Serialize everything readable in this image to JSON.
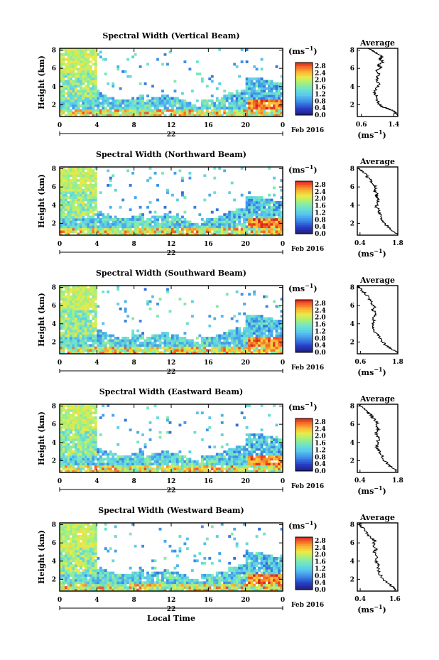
{
  "chart_data": [
    {
      "type": "heatmap",
      "title": "Spectral Width (Vertical Beam)",
      "ylabel": "Height (km)",
      "y_ticks": [
        "2",
        "4",
        "6",
        "8"
      ],
      "ylim": [
        0.7,
        8.2
      ],
      "x_ticks": [
        "0",
        "4",
        "8",
        "12",
        "16",
        "20",
        "0"
      ],
      "xlim": [
        0,
        24
      ],
      "date_day": "22",
      "date_label": "Feb 2016",
      "colorbar": {
        "unit": "(ms",
        "unit_sup": "−1",
        "unit_close": ")",
        "ticks": [
          "2.8",
          "2.4",
          "2.0",
          "1.6",
          "1.2",
          "0.8",
          "0.4",
          "0.0"
        ],
        "range": [
          0.0,
          3.0
        ]
      },
      "average": {
        "title": "Average",
        "y_ticks": [
          "2",
          "4",
          "6",
          "8"
        ],
        "ylim": [
          0.7,
          8.2
        ],
        "x_ticks": [
          "0.6",
          "1.4"
        ],
        "xlim": [
          0.5,
          1.5
        ],
        "xlabel": "(ms",
        "xlabel_sup": "−1",
        "xlabel_close": ")",
        "profile": [
          [
            1.5,
            0.8
          ],
          [
            1.42,
            1.2
          ],
          [
            1.3,
            1.5
          ],
          [
            1.15,
            1.7
          ],
          [
            1.05,
            2.0
          ],
          [
            1.0,
            2.5
          ],
          [
            0.98,
            3.0
          ],
          [
            0.92,
            3.3
          ],
          [
            0.95,
            3.8
          ],
          [
            1.05,
            4.2
          ],
          [
            0.98,
            4.6
          ],
          [
            1.0,
            5.0
          ],
          [
            1.05,
            5.4
          ],
          [
            0.98,
            5.8
          ],
          [
            1.1,
            6.1
          ],
          [
            1.0,
            6.4
          ],
          [
            1.15,
            6.7
          ],
          [
            1.05,
            7.0
          ],
          [
            1.12,
            7.3
          ],
          [
            1.0,
            7.6
          ],
          [
            0.9,
            7.9
          ],
          [
            0.8,
            8.2
          ]
        ]
      }
    },
    {
      "type": "heatmap",
      "title": "Spectral Width (Northward Beam)",
      "ylabel": "Height (km)",
      "y_ticks": [
        "2",
        "4",
        "6",
        "8"
      ],
      "ylim": [
        0.7,
        8.2
      ],
      "x_ticks": [
        "0",
        "4",
        "8",
        "12",
        "16",
        "20",
        "0"
      ],
      "xlim": [
        0,
        24
      ],
      "date_day": "22",
      "date_label": "Feb 2016",
      "colorbar": {
        "unit": "(ms",
        "unit_sup": "−1",
        "unit_close": ")",
        "ticks": [
          "2.8",
          "2.4",
          "2.0",
          "1.6",
          "1.2",
          "0.8",
          "0.4",
          "0.0"
        ],
        "range": [
          0.0,
          3.0
        ]
      },
      "average": {
        "title": "Average",
        "y_ticks": [
          "2",
          "4",
          "6",
          "8"
        ],
        "ylim": [
          0.7,
          8.2
        ],
        "x_ticks": [
          "0.4",
          "1.8"
        ],
        "xlim": [
          0.3,
          1.8
        ],
        "xlabel": "(ms",
        "xlabel_sup": "−1",
        "xlabel_close": ")",
        "profile": [
          [
            1.8,
            0.8
          ],
          [
            1.6,
            1.2
          ],
          [
            1.45,
            1.6
          ],
          [
            1.3,
            2.0
          ],
          [
            1.2,
            2.5
          ],
          [
            1.15,
            3.0
          ],
          [
            1.1,
            3.4
          ],
          [
            1.0,
            3.8
          ],
          [
            1.05,
            4.2
          ],
          [
            1.1,
            4.6
          ],
          [
            1.0,
            5.0
          ],
          [
            1.05,
            5.3
          ],
          [
            0.95,
            5.6
          ],
          [
            1.0,
            5.9
          ],
          [
            0.9,
            6.3
          ],
          [
            0.8,
            6.7
          ],
          [
            0.65,
            7.2
          ],
          [
            0.5,
            7.7
          ],
          [
            0.35,
            8.1
          ]
        ]
      }
    },
    {
      "type": "heatmap",
      "title": "Spectral Width (Southward Beam)",
      "ylabel": "Height (km)",
      "y_ticks": [
        "2",
        "4",
        "6",
        "8"
      ],
      "ylim": [
        0.7,
        8.2
      ],
      "x_ticks": [
        "0",
        "4",
        "8",
        "12",
        "16",
        "20",
        "0"
      ],
      "xlim": [
        0,
        24
      ],
      "date_day": "22",
      "date_label": "Feb 2016",
      "colorbar": {
        "unit": "(ms",
        "unit_sup": "−1",
        "unit_close": ")",
        "ticks": [
          "2.8",
          "2.4",
          "2.0",
          "1.6",
          "1.2",
          "0.8",
          "0.4",
          "0.0"
        ],
        "range": [
          0.0,
          3.0
        ]
      },
      "average": {
        "title": "Average",
        "y_ticks": [
          "2",
          "4",
          "6",
          "8"
        ],
        "ylim": [
          0.7,
          8.2
        ],
        "x_ticks": [
          "0.6",
          "1.8"
        ],
        "xlim": [
          0.5,
          1.8
        ],
        "xlabel": "(ms",
        "xlabel_sup": "−1",
        "xlabel_close": ")",
        "profile": [
          [
            1.8,
            0.8
          ],
          [
            1.6,
            1.2
          ],
          [
            1.45,
            1.6
          ],
          [
            1.3,
            2.0
          ],
          [
            1.2,
            2.5
          ],
          [
            1.1,
            3.0
          ],
          [
            1.0,
            3.4
          ],
          [
            0.98,
            3.8
          ],
          [
            1.05,
            4.3
          ],
          [
            1.0,
            4.7
          ],
          [
            1.1,
            5.1
          ],
          [
            1.0,
            5.5
          ],
          [
            1.05,
            5.9
          ],
          [
            0.95,
            6.3
          ],
          [
            0.9,
            6.7
          ],
          [
            0.8,
            7.1
          ],
          [
            0.7,
            7.5
          ],
          [
            0.6,
            7.9
          ],
          [
            0.5,
            8.2
          ]
        ]
      }
    },
    {
      "type": "heatmap",
      "title": "Spectral Width (Eastward Beam)",
      "ylabel": "Height (km)",
      "y_ticks": [
        "2",
        "4",
        "6",
        "8"
      ],
      "ylim": [
        0.7,
        8.2
      ],
      "x_ticks": [
        "0",
        "4",
        "8",
        "12",
        "16",
        "20",
        "0"
      ],
      "xlim": [
        0,
        24
      ],
      "date_day": "22",
      "date_label": "Feb 2016",
      "colorbar": {
        "unit": "(ms",
        "unit_sup": "−1",
        "unit_close": ")",
        "ticks": [
          "2.8",
          "2.4",
          "2.0",
          "1.6",
          "1.2",
          "0.8",
          "0.4",
          "0.0"
        ],
        "range": [
          0.0,
          3.0
        ]
      },
      "average": {
        "title": "Average",
        "y_ticks": [
          "2",
          "4",
          "6",
          "8"
        ],
        "ylim": [
          0.7,
          8.2
        ],
        "x_ticks": [
          "0.4",
          "1.8"
        ],
        "xlim": [
          0.3,
          1.8
        ],
        "xlabel": "(ms",
        "xlabel_sup": "−1",
        "xlabel_close": ")",
        "profile": [
          [
            1.8,
            0.8
          ],
          [
            1.6,
            1.2
          ],
          [
            1.45,
            1.6
          ],
          [
            1.3,
            2.0
          ],
          [
            1.2,
            2.6
          ],
          [
            1.1,
            3.1
          ],
          [
            1.0,
            3.5
          ],
          [
            1.05,
            4.0
          ],
          [
            1.1,
            4.5
          ],
          [
            1.0,
            5.0
          ],
          [
            1.1,
            5.4
          ],
          [
            1.0,
            5.8
          ],
          [
            1.05,
            6.2
          ],
          [
            0.9,
            6.6
          ],
          [
            0.8,
            7.0
          ],
          [
            0.65,
            7.4
          ],
          [
            0.5,
            7.8
          ],
          [
            0.4,
            8.2
          ]
        ]
      }
    },
    {
      "type": "heatmap",
      "title": "Spectral Width (Westward Beam)",
      "ylabel": "Height (km)",
      "y_ticks": [
        "2",
        "4",
        "6",
        "8"
      ],
      "ylim": [
        0.7,
        8.2
      ],
      "x_ticks": [
        "0",
        "4",
        "8",
        "12",
        "16",
        "20",
        "0"
      ],
      "xlim": [
        0,
        24
      ],
      "date_day": "22",
      "date_label": "Feb 2016",
      "xlabel": "Local Time",
      "colorbar": {
        "unit": "(ms",
        "unit_sup": "−1",
        "unit_close": ")",
        "ticks": [
          "2.8",
          "2.4",
          "2.0",
          "1.6",
          "1.2",
          "0.8",
          "0.4",
          "0.0"
        ],
        "range": [
          0.0,
          3.0
        ]
      },
      "average": {
        "title": "Average",
        "y_ticks": [
          "2",
          "4",
          "6",
          "8"
        ],
        "ylim": [
          0.7,
          8.2
        ],
        "x_ticks": [
          "0.4",
          "1.6"
        ],
        "xlim": [
          0.3,
          1.7
        ],
        "xlabel": "(ms",
        "xlabel_sup": "−1",
        "xlabel_close": ")",
        "profile": [
          [
            1.7,
            0.8
          ],
          [
            1.5,
            1.2
          ],
          [
            1.35,
            1.6
          ],
          [
            1.2,
            2.0
          ],
          [
            1.1,
            2.5
          ],
          [
            1.0,
            3.0
          ],
          [
            1.05,
            3.5
          ],
          [
            0.95,
            4.0
          ],
          [
            1.0,
            4.5
          ],
          [
            0.9,
            5.0
          ],
          [
            0.95,
            5.4
          ],
          [
            0.85,
            5.8
          ],
          [
            0.9,
            6.2
          ],
          [
            0.75,
            6.6
          ],
          [
            0.65,
            7.0
          ],
          [
            0.55,
            7.4
          ],
          [
            0.45,
            7.8
          ],
          [
            0.35,
            8.2
          ]
        ]
      }
    }
  ]
}
